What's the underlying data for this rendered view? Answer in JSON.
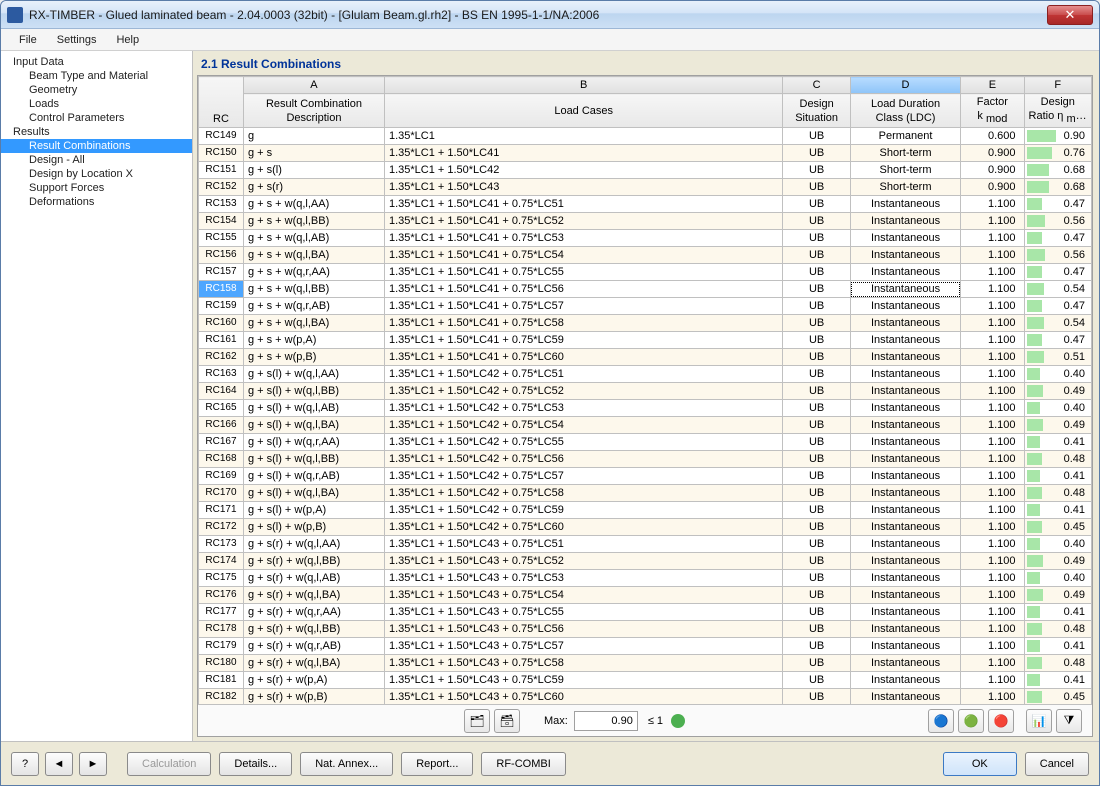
{
  "window": {
    "title": "RX-TIMBER - Glued laminated beam - 2.04.0003 (32bit) - [Glulam Beam.gl.rh2] - BS EN 1995-1-1/NA:2006"
  },
  "menu": [
    "File",
    "Settings",
    "Help"
  ],
  "tree": {
    "root1": "Input Data",
    "r1c": [
      "Beam Type and Material",
      "Geometry",
      "Loads",
      "Control Parameters"
    ],
    "root2": "Results",
    "r2c": [
      "Result Combinations",
      "Design - All",
      "Design by Location X",
      "Support Forces",
      "Deformations"
    ],
    "selected": "Result Combinations"
  },
  "panel": {
    "title": "2.1 Result Combinations"
  },
  "columns": {
    "letters": [
      "A",
      "B",
      "C",
      "D",
      "E",
      "F"
    ],
    "rc": "RC",
    "a": "Result Combination\nDescription",
    "b": "Load Cases",
    "c": "Design\nSituation",
    "d": "Load Duration\nClass (LDC)",
    "e": "Factor\nk mod",
    "f": "Design\nRatio η max",
    "selected_letter": "D"
  },
  "ratio_bar_color": "#a8e6a8",
  "selected_rc": "RC158",
  "rows": [
    {
      "rc": "RC149",
      "desc": "g",
      "lc": "1.35*LC1",
      "ds": "UB",
      "ldc": "Permanent",
      "k": "0.600",
      "r": 0.9
    },
    {
      "rc": "RC150",
      "desc": "g + s",
      "lc": "1.35*LC1 + 1.50*LC41",
      "ds": "UB",
      "ldc": "Short-term",
      "k": "0.900",
      "r": 0.76
    },
    {
      "rc": "RC151",
      "desc": "g + s(l)",
      "lc": "1.35*LC1 + 1.50*LC42",
      "ds": "UB",
      "ldc": "Short-term",
      "k": "0.900",
      "r": 0.68
    },
    {
      "rc": "RC152",
      "desc": "g + s(r)",
      "lc": "1.35*LC1 + 1.50*LC43",
      "ds": "UB",
      "ldc": "Short-term",
      "k": "0.900",
      "r": 0.68
    },
    {
      "rc": "RC153",
      "desc": "g + s + w(q,l,AA)",
      "lc": "1.35*LC1 + 1.50*LC41 + 0.75*LC51",
      "ds": "UB",
      "ldc": "Instantaneous",
      "k": "1.100",
      "r": 0.47
    },
    {
      "rc": "RC154",
      "desc": "g + s + w(q,l,BB)",
      "lc": "1.35*LC1 + 1.50*LC41 + 0.75*LC52",
      "ds": "UB",
      "ldc": "Instantaneous",
      "k": "1.100",
      "r": 0.56
    },
    {
      "rc": "RC155",
      "desc": "g + s + w(q,l,AB)",
      "lc": "1.35*LC1 + 1.50*LC41 + 0.75*LC53",
      "ds": "UB",
      "ldc": "Instantaneous",
      "k": "1.100",
      "r": 0.47
    },
    {
      "rc": "RC156",
      "desc": "g + s + w(q,l,BA)",
      "lc": "1.35*LC1 + 1.50*LC41 + 0.75*LC54",
      "ds": "UB",
      "ldc": "Instantaneous",
      "k": "1.100",
      "r": 0.56
    },
    {
      "rc": "RC157",
      "desc": "g + s + w(q,r,AA)",
      "lc": "1.35*LC1 + 1.50*LC41 + 0.75*LC55",
      "ds": "UB",
      "ldc": "Instantaneous",
      "k": "1.100",
      "r": 0.47
    },
    {
      "rc": "RC158",
      "desc": "g + s + w(q,l,BB)",
      "lc": "1.35*LC1 + 1.50*LC41 + 0.75*LC56",
      "ds": "UB",
      "ldc": "Instantaneous",
      "k": "1.100",
      "r": 0.54
    },
    {
      "rc": "RC159",
      "desc": "g + s + w(q,r,AB)",
      "lc": "1.35*LC1 + 1.50*LC41 + 0.75*LC57",
      "ds": "UB",
      "ldc": "Instantaneous",
      "k": "1.100",
      "r": 0.47
    },
    {
      "rc": "RC160",
      "desc": "g + s + w(q,l,BA)",
      "lc": "1.35*LC1 + 1.50*LC41 + 0.75*LC58",
      "ds": "UB",
      "ldc": "Instantaneous",
      "k": "1.100",
      "r": 0.54
    },
    {
      "rc": "RC161",
      "desc": "g + s + w(p,A)",
      "lc": "1.35*LC1 + 1.50*LC41 + 0.75*LC59",
      "ds": "UB",
      "ldc": "Instantaneous",
      "k": "1.100",
      "r": 0.47
    },
    {
      "rc": "RC162",
      "desc": "g + s + w(p,B)",
      "lc": "1.35*LC1 + 1.50*LC41 + 0.75*LC60",
      "ds": "UB",
      "ldc": "Instantaneous",
      "k": "1.100",
      "r": 0.51
    },
    {
      "rc": "RC163",
      "desc": "g + s(l) + w(q,l,AA)",
      "lc": "1.35*LC1 + 1.50*LC42 + 0.75*LC51",
      "ds": "UB",
      "ldc": "Instantaneous",
      "k": "1.100",
      "r": 0.4
    },
    {
      "rc": "RC164",
      "desc": "g + s(l) + w(q,l,BB)",
      "lc": "1.35*LC1 + 1.50*LC42 + 0.75*LC52",
      "ds": "UB",
      "ldc": "Instantaneous",
      "k": "1.100",
      "r": 0.49
    },
    {
      "rc": "RC165",
      "desc": "g + s(l) + w(q,l,AB)",
      "lc": "1.35*LC1 + 1.50*LC42 + 0.75*LC53",
      "ds": "UB",
      "ldc": "Instantaneous",
      "k": "1.100",
      "r": 0.4
    },
    {
      "rc": "RC166",
      "desc": "g + s(l) + w(q,l,BA)",
      "lc": "1.35*LC1 + 1.50*LC42 + 0.75*LC54",
      "ds": "UB",
      "ldc": "Instantaneous",
      "k": "1.100",
      "r": 0.49
    },
    {
      "rc": "RC167",
      "desc": "g + s(l) + w(q,r,AA)",
      "lc": "1.35*LC1 + 1.50*LC42 + 0.75*LC55",
      "ds": "UB",
      "ldc": "Instantaneous",
      "k": "1.100",
      "r": 0.41
    },
    {
      "rc": "RC168",
      "desc": "g + s(l) + w(q,l,BB)",
      "lc": "1.35*LC1 + 1.50*LC42 + 0.75*LC56",
      "ds": "UB",
      "ldc": "Instantaneous",
      "k": "1.100",
      "r": 0.48
    },
    {
      "rc": "RC169",
      "desc": "g + s(l) + w(q,r,AB)",
      "lc": "1.35*LC1 + 1.50*LC42 + 0.75*LC57",
      "ds": "UB",
      "ldc": "Instantaneous",
      "k": "1.100",
      "r": 0.41
    },
    {
      "rc": "RC170",
      "desc": "g + s(l) + w(q,l,BA)",
      "lc": "1.35*LC1 + 1.50*LC42 + 0.75*LC58",
      "ds": "UB",
      "ldc": "Instantaneous",
      "k": "1.100",
      "r": 0.48
    },
    {
      "rc": "RC171",
      "desc": "g + s(l) + w(p,A)",
      "lc": "1.35*LC1 + 1.50*LC42 + 0.75*LC59",
      "ds": "UB",
      "ldc": "Instantaneous",
      "k": "1.100",
      "r": 0.41
    },
    {
      "rc": "RC172",
      "desc": "g + s(l) + w(p,B)",
      "lc": "1.35*LC1 + 1.50*LC42 + 0.75*LC60",
      "ds": "UB",
      "ldc": "Instantaneous",
      "k": "1.100",
      "r": 0.45
    },
    {
      "rc": "RC173",
      "desc": "g + s(r) + w(q,l,AA)",
      "lc": "1.35*LC1 + 1.50*LC43 + 0.75*LC51",
      "ds": "UB",
      "ldc": "Instantaneous",
      "k": "1.100",
      "r": 0.4
    },
    {
      "rc": "RC174",
      "desc": "g + s(r) + w(q,l,BB)",
      "lc": "1.35*LC1 + 1.50*LC43 + 0.75*LC52",
      "ds": "UB",
      "ldc": "Instantaneous",
      "k": "1.100",
      "r": 0.49
    },
    {
      "rc": "RC175",
      "desc": "g + s(r) + w(q,l,AB)",
      "lc": "1.35*LC1 + 1.50*LC43 + 0.75*LC53",
      "ds": "UB",
      "ldc": "Instantaneous",
      "k": "1.100",
      "r": 0.4
    },
    {
      "rc": "RC176",
      "desc": "g + s(r) + w(q,l,BA)",
      "lc": "1.35*LC1 + 1.50*LC43 + 0.75*LC54",
      "ds": "UB",
      "ldc": "Instantaneous",
      "k": "1.100",
      "r": 0.49
    },
    {
      "rc": "RC177",
      "desc": "g + s(r) + w(q,r,AA)",
      "lc": "1.35*LC1 + 1.50*LC43 + 0.75*LC55",
      "ds": "UB",
      "ldc": "Instantaneous",
      "k": "1.100",
      "r": 0.41
    },
    {
      "rc": "RC178",
      "desc": "g + s(r) + w(q,l,BB)",
      "lc": "1.35*LC1 + 1.50*LC43 + 0.75*LC56",
      "ds": "UB",
      "ldc": "Instantaneous",
      "k": "1.100",
      "r": 0.48
    },
    {
      "rc": "RC179",
      "desc": "g + s(r) + w(q,r,AB)",
      "lc": "1.35*LC1 + 1.50*LC43 + 0.75*LC57",
      "ds": "UB",
      "ldc": "Instantaneous",
      "k": "1.100",
      "r": 0.41
    },
    {
      "rc": "RC180",
      "desc": "g + s(r) + w(q,l,BA)",
      "lc": "1.35*LC1 + 1.50*LC43 + 0.75*LC58",
      "ds": "UB",
      "ldc": "Instantaneous",
      "k": "1.100",
      "r": 0.48
    },
    {
      "rc": "RC181",
      "desc": "g + s(r) + w(p,A)",
      "lc": "1.35*LC1 + 1.50*LC43 + 0.75*LC59",
      "ds": "UB",
      "ldc": "Instantaneous",
      "k": "1.100",
      "r": 0.41
    },
    {
      "rc": "RC182",
      "desc": "g + s(r) + w(p,B)",
      "lc": "1.35*LC1 + 1.50*LC43 + 0.75*LC60",
      "ds": "UB",
      "ldc": "Instantaneous",
      "k": "1.100",
      "r": 0.45
    }
  ],
  "toolbar": {
    "max_label": "Max:",
    "max_value": "0.90",
    "limit_label": "≤ 1"
  },
  "footer": {
    "calculation": "Calculation",
    "details": "Details...",
    "nat_annex": "Nat. Annex...",
    "report": "Report...",
    "rf_combi": "RF-COMBI",
    "ok": "OK",
    "cancel": "Cancel"
  }
}
